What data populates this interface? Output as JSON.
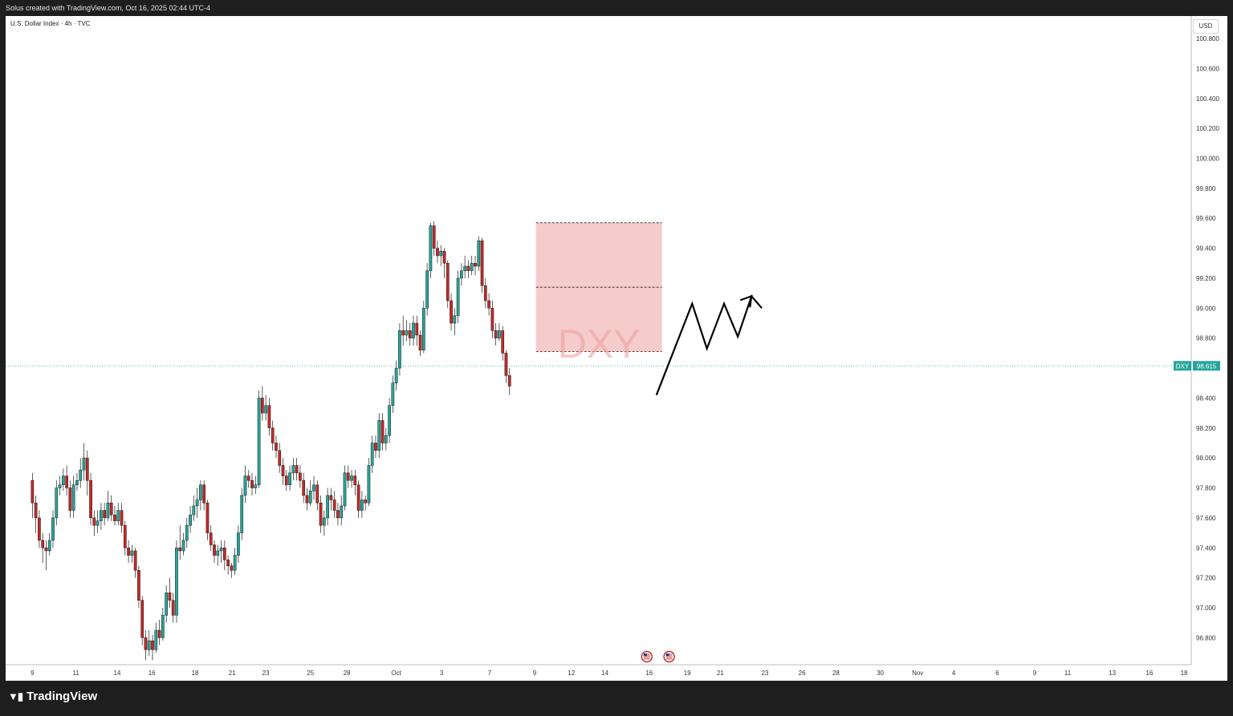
{
  "header": {
    "created_by": "Solus created with TradingView.com, Oct 16, 2025 02:44 UTC-4"
  },
  "symbol_title": "U.S. Dollar Index · 4h · TVC",
  "currency_label": "USD",
  "watermark": "DXY",
  "brand": {
    "logo_icon": "tradingview-logo-icon",
    "name": "TradingView"
  },
  "colors": {
    "up": "#26a69a",
    "down": "#c62828",
    "zone_fill": "#f4c2c2",
    "price_line": "#26a69a",
    "projection": "#000000"
  },
  "chart_data": {
    "type": "candlestick",
    "title": "U.S. Dollar Index · 4h · TVC",
    "ylim": [
      96.62,
      100.95
    ],
    "y_ticks": [
      100.8,
      100.6,
      100.4,
      100.2,
      100.0,
      99.8,
      99.6,
      99.4,
      99.2,
      99.0,
      98.8,
      98.6,
      98.4,
      98.2,
      98.0,
      97.8,
      97.6,
      97.4,
      97.2,
      97.0,
      96.8
    ],
    "x_tick_labels": [
      "9",
      "11",
      "14",
      "16",
      "18",
      "21",
      "23",
      "25",
      "28",
      "Oct",
      "3",
      "7",
      "9",
      "12",
      "14",
      "16",
      "19",
      "21",
      "23",
      "26",
      "28",
      "30",
      "Nov",
      "4",
      "6",
      "9",
      "11",
      "13",
      "16",
      "18"
    ],
    "x_tick_pos": [
      0,
      12.7,
      24.7,
      34.8,
      47.4,
      58.2,
      68,
      81,
      91.6,
      106,
      119.2,
      133.2,
      146.3,
      157,
      166.8,
      179.7,
      190.8,
      200.4,
      213.4,
      224.2,
      234.1,
      247,
      257.9,
      268.4,
      281.1,
      292,
      301.6,
      314.6,
      325.4,
      335.5
    ],
    "x_range": [
      -7.8,
      337.6
    ],
    "current_price": {
      "symbol": "DXY",
      "value": "98.615",
      "price": 98.615
    },
    "event_flags": [
      {
        "x": 179,
        "icon": "us-flag-icon"
      },
      {
        "x": 185.5,
        "icon": "us-flag-icon"
      }
    ],
    "zone": {
      "x0": 146.7,
      "x1": 183.4,
      "top": 99.57,
      "bottom": 98.71,
      "mid": 99.14
    },
    "projection": [
      [
        181.8,
        98.42
      ],
      [
        192.2,
        99.03
      ],
      [
        196.5,
        98.73
      ],
      [
        201.5,
        99.03
      ],
      [
        205.5,
        98.81
      ],
      [
        209.5,
        99.08
      ],
      [
        212.5,
        99.0
      ]
    ],
    "candles": [
      [
        97.85,
        97.7,
        97.9,
        97.6
      ],
      [
        97.7,
        97.6,
        97.75,
        97.5
      ],
      [
        97.6,
        97.45,
        97.65,
        97.4
      ],
      [
        97.45,
        97.4,
        97.5,
        97.3
      ],
      [
        97.4,
        97.38,
        97.45,
        97.25
      ],
      [
        97.38,
        97.45,
        97.5,
        97.35
      ],
      [
        97.45,
        97.6,
        97.65,
        97.4
      ],
      [
        97.6,
        97.8,
        97.85,
        97.55
      ],
      [
        97.8,
        97.82,
        97.88,
        97.75
      ],
      [
        97.82,
        97.88,
        97.93,
        97.78
      ],
      [
        97.88,
        97.8,
        97.95,
        97.75
      ],
      [
        97.8,
        97.65,
        97.85,
        97.6
      ],
      [
        97.65,
        97.82,
        97.88,
        97.6
      ],
      [
        97.82,
        97.85,
        97.9,
        97.78
      ],
      [
        97.85,
        97.92,
        98.0,
        97.8
      ],
      [
        97.92,
        98.0,
        98.1,
        97.85
      ],
      [
        98.0,
        97.85,
        98.05,
        97.75
      ],
      [
        97.85,
        97.6,
        97.9,
        97.55
      ],
      [
        97.6,
        97.55,
        97.65,
        97.48
      ],
      [
        97.55,
        97.58,
        97.65,
        97.5
      ],
      [
        97.58,
        97.65,
        97.7,
        97.52
      ],
      [
        97.65,
        97.6,
        97.7,
        97.55
      ],
      [
        97.6,
        97.7,
        97.78,
        97.58
      ],
      [
        97.7,
        97.62,
        97.75,
        97.58
      ],
      [
        97.62,
        97.58,
        97.68,
        97.55
      ],
      [
        97.58,
        97.65,
        97.7,
        97.55
      ],
      [
        97.65,
        97.55,
        97.7,
        97.5
      ],
      [
        97.55,
        97.4,
        97.58,
        97.35
      ],
      [
        97.4,
        97.35,
        97.45,
        97.3
      ],
      [
        97.35,
        97.38,
        97.42,
        97.3
      ],
      [
        97.38,
        97.25,
        97.4,
        97.2
      ],
      [
        97.25,
        97.05,
        97.28,
        97.0
      ],
      [
        97.05,
        96.8,
        97.08,
        96.75
      ],
      [
        96.8,
        96.72,
        96.85,
        96.65
      ],
      [
        96.72,
        96.78,
        96.85,
        96.68
      ],
      [
        96.78,
        96.72,
        96.82,
        96.65
      ],
      [
        96.72,
        96.85,
        96.9,
        96.7
      ],
      [
        96.85,
        96.8,
        96.92,
        96.75
      ],
      [
        96.8,
        96.95,
        97.0,
        96.78
      ],
      [
        96.95,
        97.1,
        97.15,
        96.9
      ],
      [
        97.1,
        97.05,
        97.2,
        97.0
      ],
      [
        97.05,
        96.95,
        97.1,
        96.9
      ],
      [
        96.95,
        97.4,
        97.45,
        96.9
      ],
      [
        97.4,
        97.38,
        97.55,
        97.32
      ],
      [
        97.38,
        97.45,
        97.5,
        97.35
      ],
      [
        97.45,
        97.55,
        97.6,
        97.4
      ],
      [
        97.55,
        97.62,
        97.68,
        97.5
      ],
      [
        97.62,
        97.68,
        97.75,
        97.58
      ],
      [
        97.68,
        97.72,
        97.8,
        97.6
      ],
      [
        97.72,
        97.82,
        97.85,
        97.65
      ],
      [
        97.82,
        97.7,
        97.85,
        97.65
      ],
      [
        97.7,
        97.5,
        97.72,
        97.45
      ],
      [
        97.5,
        97.42,
        97.55,
        97.38
      ],
      [
        97.42,
        97.35,
        97.45,
        97.3
      ],
      [
        97.35,
        97.38,
        97.42,
        97.28
      ],
      [
        97.38,
        97.4,
        97.45,
        97.3
      ],
      [
        97.4,
        97.32,
        97.45,
        97.25
      ],
      [
        97.32,
        97.28,
        97.35,
        97.22
      ],
      [
        97.28,
        97.25,
        97.3,
        97.2
      ],
      [
        97.25,
        97.35,
        97.4,
        97.22
      ],
      [
        97.35,
        97.5,
        97.55,
        97.3
      ],
      [
        97.5,
        97.75,
        97.8,
        97.45
      ],
      [
        97.75,
        97.88,
        97.95,
        97.7
      ],
      [
        97.88,
        97.85,
        97.92,
        97.8
      ],
      [
        97.85,
        97.8,
        97.9,
        97.75
      ],
      [
        97.8,
        97.82,
        97.88,
        97.76
      ],
      [
        97.82,
        98.4,
        98.45,
        97.8
      ],
      [
        98.4,
        98.3,
        98.48,
        98.25
      ],
      [
        98.3,
        98.35,
        98.42,
        98.25
      ],
      [
        98.35,
        98.2,
        98.4,
        98.15
      ],
      [
        98.2,
        98.1,
        98.25,
        98.05
      ],
      [
        98.1,
        98.05,
        98.15,
        98.0
      ],
      [
        98.05,
        97.95,
        98.1,
        97.9
      ],
      [
        97.95,
        97.88,
        98.0,
        97.82
      ],
      [
        97.88,
        97.82,
        97.92,
        97.78
      ],
      [
        97.82,
        97.9,
        97.95,
        97.78
      ],
      [
        97.9,
        97.95,
        98.0,
        97.85
      ],
      [
        97.95,
        97.9,
        98.0,
        97.85
      ],
      [
        97.9,
        97.85,
        97.95,
        97.8
      ],
      [
        97.85,
        97.75,
        97.9,
        97.7
      ],
      [
        97.75,
        97.7,
        97.8,
        97.65
      ],
      [
        97.7,
        97.78,
        97.85,
        97.68
      ],
      [
        97.78,
        97.82,
        97.88,
        97.72
      ],
      [
        97.82,
        97.7,
        97.85,
        97.65
      ],
      [
        97.7,
        97.55,
        97.75,
        97.5
      ],
      [
        97.55,
        97.6,
        97.65,
        97.48
      ],
      [
        97.6,
        97.75,
        97.8,
        97.55
      ],
      [
        97.75,
        97.72,
        97.8,
        97.65
      ],
      [
        97.72,
        97.65,
        97.78,
        97.6
      ],
      [
        97.65,
        97.6,
        97.7,
        97.55
      ],
      [
        97.6,
        97.68,
        97.75,
        97.55
      ],
      [
        97.68,
        97.9,
        97.95,
        97.65
      ],
      [
        97.9,
        97.85,
        97.95,
        97.8
      ],
      [
        97.85,
        97.88,
        97.92,
        97.8
      ],
      [
        97.88,
        97.82,
        97.92,
        97.75
      ],
      [
        97.82,
        97.65,
        97.85,
        97.6
      ],
      [
        97.65,
        97.72,
        97.78,
        97.6
      ],
      [
        97.72,
        97.7,
        97.75,
        97.65
      ],
      [
        97.7,
        97.95,
        98.0,
        97.68
      ],
      [
        97.95,
        98.1,
        98.15,
        97.9
      ],
      [
        98.1,
        98.05,
        98.15,
        98.0
      ],
      [
        98.05,
        98.25,
        98.3,
        98.0
      ],
      [
        98.25,
        98.1,
        98.3,
        98.05
      ],
      [
        98.1,
        98.15,
        98.2,
        98.05
      ],
      [
        98.15,
        98.35,
        98.4,
        98.1
      ],
      [
        98.35,
        98.5,
        98.55,
        98.3
      ],
      [
        98.5,
        98.6,
        98.65,
        98.45
      ],
      [
        98.6,
        98.85,
        98.9,
        98.55
      ],
      [
        98.85,
        98.82,
        98.95,
        98.75
      ],
      [
        98.82,
        98.85,
        98.92,
        98.78
      ],
      [
        98.85,
        98.8,
        98.9,
        98.75
      ],
      [
        98.8,
        98.9,
        98.95,
        98.75
      ],
      [
        98.9,
        98.82,
        98.95,
        98.75
      ],
      [
        98.82,
        98.72,
        98.85,
        98.68
      ],
      [
        98.72,
        99.0,
        99.05,
        98.7
      ],
      [
        99.0,
        99.25,
        99.3,
        98.95
      ],
      [
        99.25,
        99.55,
        99.57,
        99.2
      ],
      [
        99.55,
        99.4,
        99.58,
        99.35
      ],
      [
        99.4,
        99.35,
        99.45,
        99.3
      ],
      [
        99.35,
        99.38,
        99.42,
        99.28
      ],
      [
        99.38,
        99.3,
        99.4,
        99.2
      ],
      [
        99.3,
        99.05,
        99.32,
        99.0
      ],
      [
        99.05,
        98.9,
        99.1,
        98.85
      ],
      [
        98.9,
        98.95,
        99.0,
        98.82
      ],
      [
        98.95,
        99.2,
        99.25,
        98.9
      ],
      [
        99.2,
        99.25,
        99.3,
        99.15
      ],
      [
        99.25,
        99.28,
        99.35,
        99.2
      ],
      [
        99.28,
        99.25,
        99.32,
        99.2
      ],
      [
        99.25,
        99.3,
        99.35,
        99.22
      ],
      [
        99.3,
        99.28,
        99.35,
        99.22
      ],
      [
        99.28,
        99.45,
        99.48,
        99.25
      ],
      [
        99.45,
        99.15,
        99.47,
        99.1
      ],
      [
        99.15,
        99.05,
        99.2,
        99.0
      ],
      [
        99.05,
        99.0,
        99.1,
        98.95
      ],
      [
        99.0,
        98.85,
        99.05,
        98.8
      ],
      [
        98.85,
        98.8,
        98.9,
        98.75
      ],
      [
        98.8,
        98.85,
        98.9,
        98.78
      ],
      [
        98.85,
        98.7,
        98.88,
        98.65
      ],
      [
        98.7,
        98.55,
        98.72,
        98.5
      ],
      [
        98.55,
        98.48,
        98.6,
        98.42
      ]
    ]
  }
}
